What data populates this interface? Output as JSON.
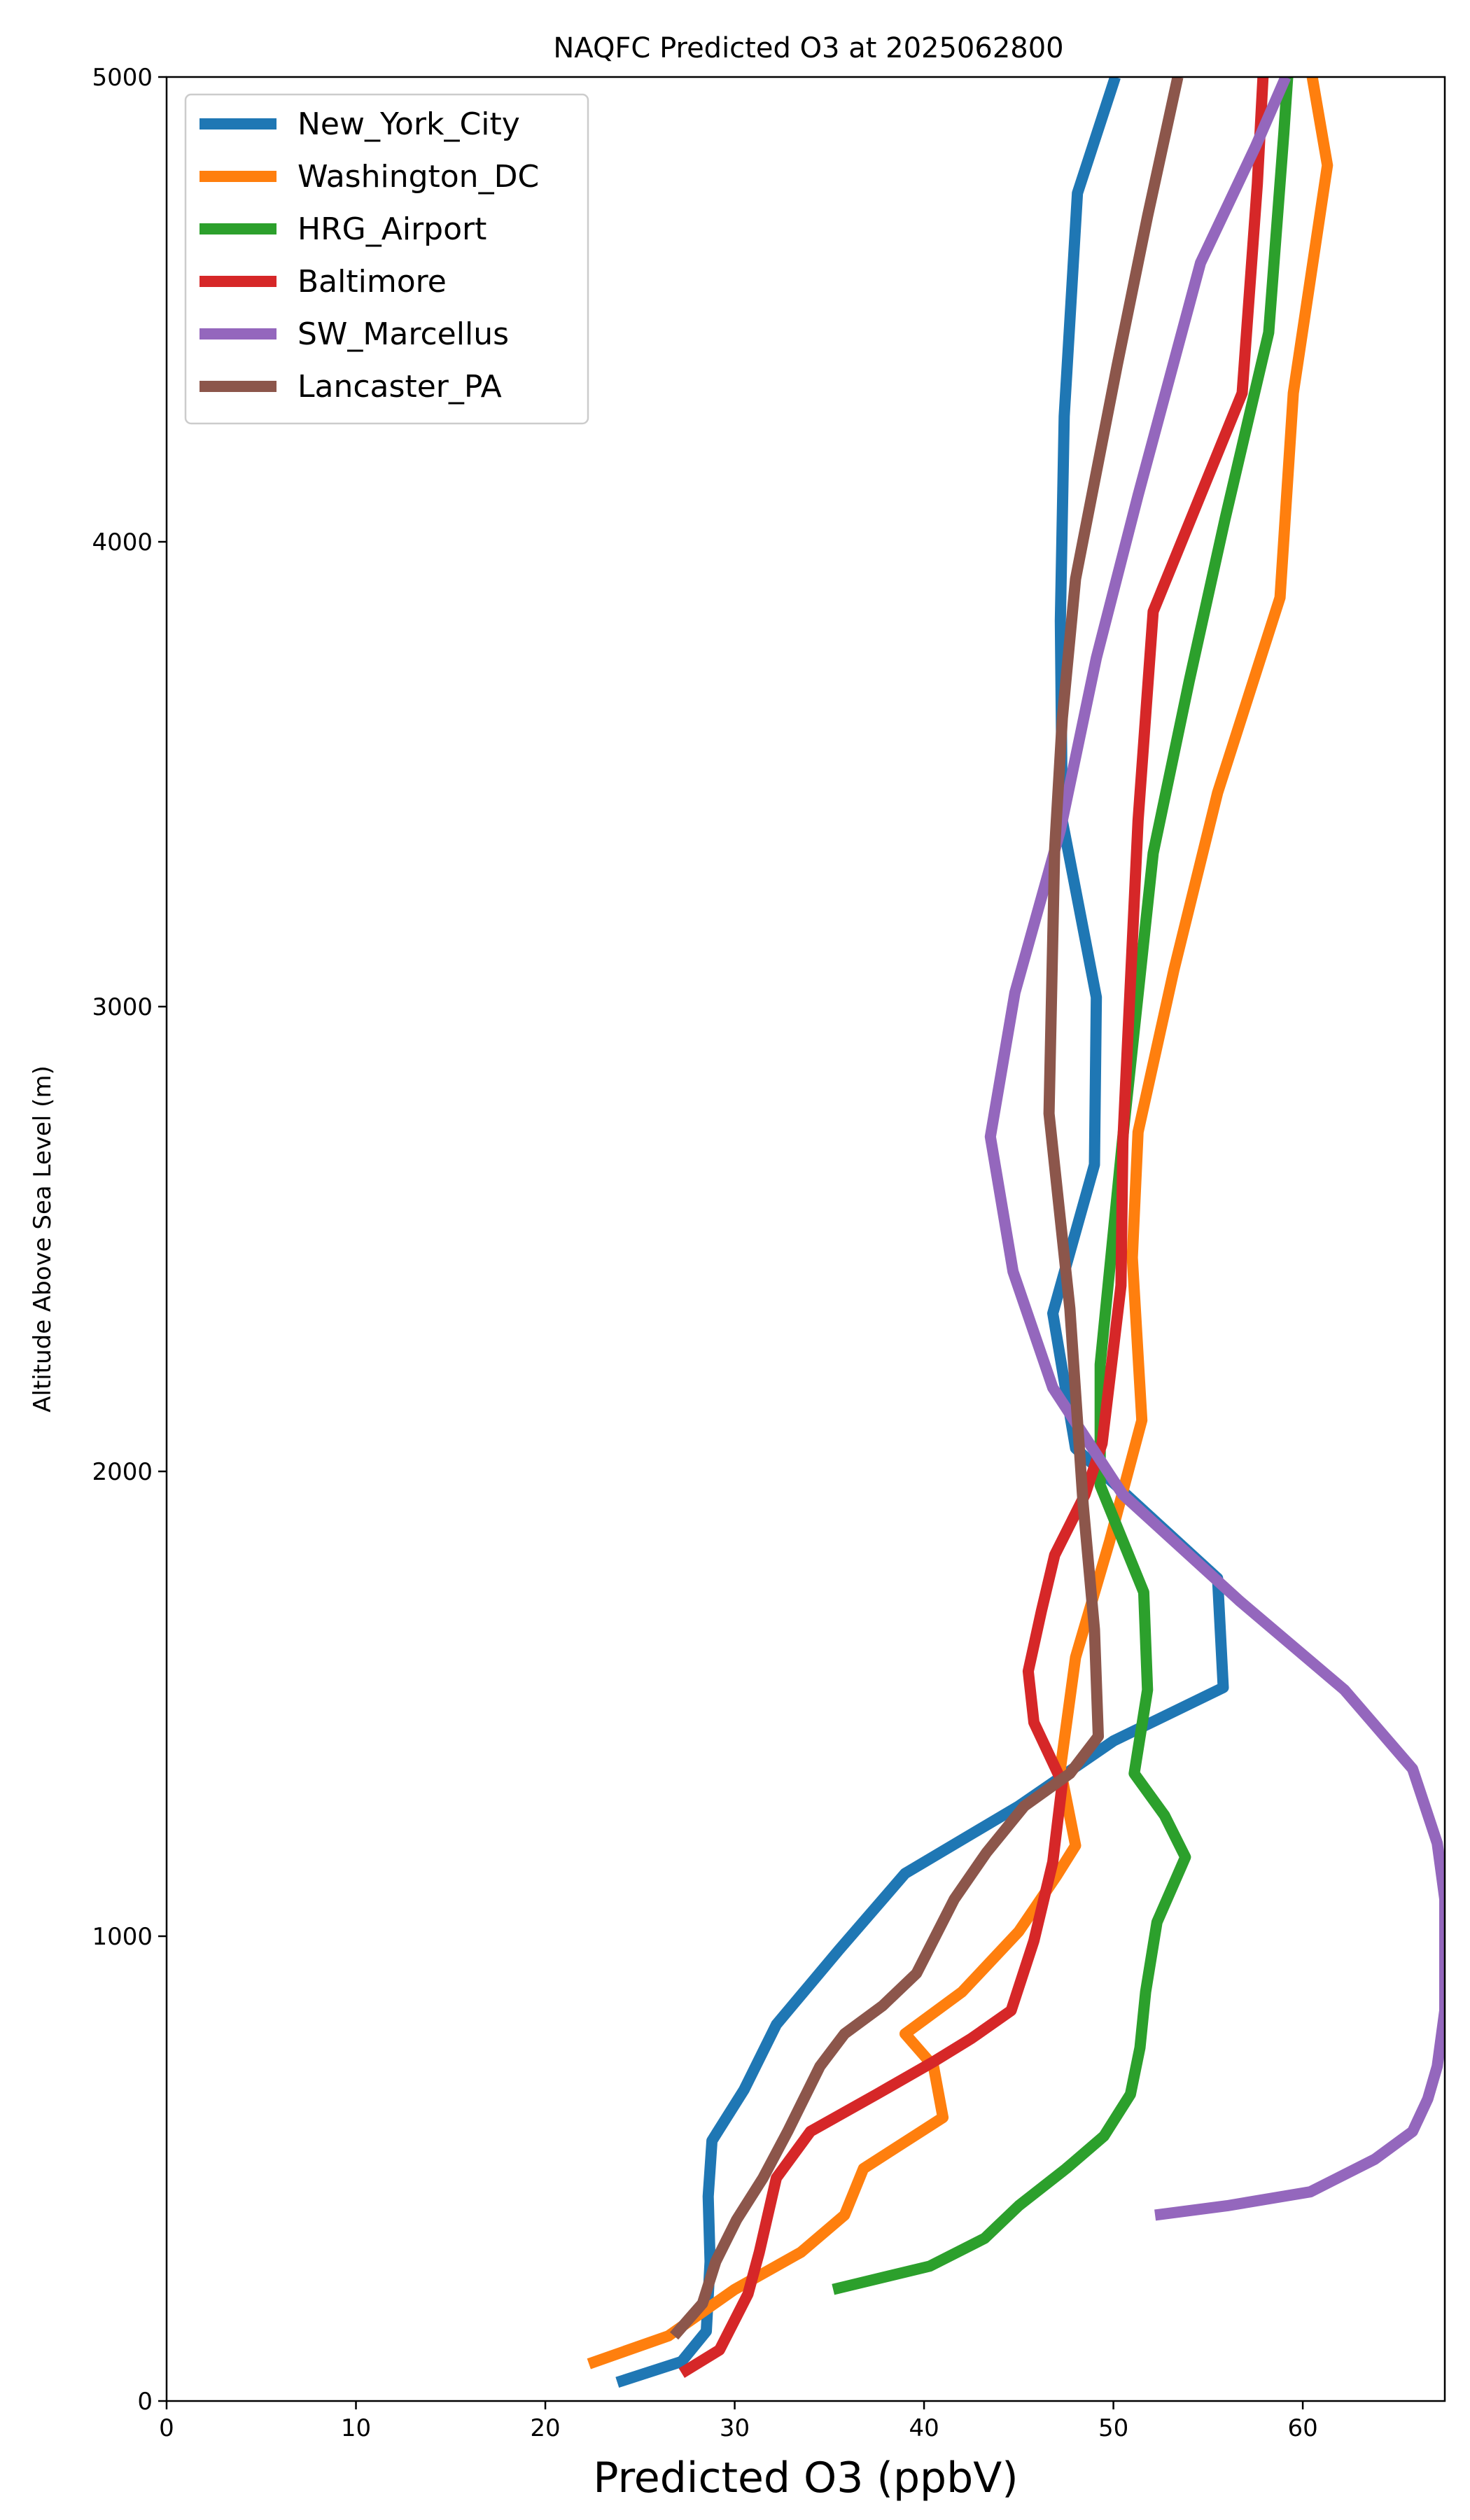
{
  "chart_data": {
    "type": "line",
    "title": "NAQFC Predicted O3 at 2025062800",
    "xlabel": "Predicted O3 (ppbV)",
    "ylabel": "Altitude Above Sea Level (m)",
    "xlim": [
      0,
      67.5
    ],
    "ylim": [
      0,
      5000
    ],
    "xticks": [
      0,
      10,
      20,
      30,
      40,
      50,
      60
    ],
    "yticks": [
      0,
      1000,
      2000,
      3000,
      4000,
      5000
    ],
    "grid": false,
    "legend_position": "upper left",
    "series": [
      {
        "name": "New_York_City",
        "color": "#1f77b4",
        "points": [
          [
            23.8,
            40
          ],
          [
            27.2,
            85
          ],
          [
            28.5,
            150
          ],
          [
            28.7,
            300
          ],
          [
            28.6,
            440
          ],
          [
            28.8,
            560
          ],
          [
            30.5,
            670
          ],
          [
            32.2,
            810
          ],
          [
            35.5,
            970
          ],
          [
            39,
            1135
          ],
          [
            45,
            1280
          ],
          [
            50,
            1420
          ],
          [
            55.8,
            1535
          ],
          [
            55.5,
            1770
          ],
          [
            48,
            2050
          ],
          [
            46.8,
            2340
          ],
          [
            49,
            2660
          ],
          [
            49.1,
            3020
          ],
          [
            47.3,
            3400
          ],
          [
            47.2,
            3830
          ],
          [
            47.4,
            4270
          ],
          [
            48.1,
            4750
          ],
          [
            50.1,
            5000
          ]
        ]
      },
      {
        "name": "Washington_DC",
        "color": "#ff7f0e",
        "points": [
          [
            22.3,
            80
          ],
          [
            26.5,
            140
          ],
          [
            30,
            240
          ],
          [
            33.5,
            320
          ],
          [
            35.8,
            400
          ],
          [
            36.8,
            500
          ],
          [
            41,
            610
          ],
          [
            40.5,
            720
          ],
          [
            39,
            790
          ],
          [
            42,
            880
          ],
          [
            45,
            1010
          ],
          [
            47,
            1130
          ],
          [
            48,
            1195
          ],
          [
            47.2,
            1360
          ],
          [
            48,
            1600
          ],
          [
            49.8,
            1850
          ],
          [
            51.5,
            2110
          ],
          [
            51,
            2460
          ],
          [
            51.3,
            2730
          ],
          [
            53.2,
            3080
          ],
          [
            55.5,
            3460
          ],
          [
            58.8,
            3880
          ],
          [
            59.5,
            4320
          ],
          [
            61.3,
            4810
          ],
          [
            60.5,
            5000
          ]
        ]
      },
      {
        "name": "HRG_Airport",
        "color": "#2ca02c",
        "points": [
          [
            35.2,
            240
          ],
          [
            40.3,
            290
          ],
          [
            43.2,
            350
          ],
          [
            45,
            420
          ],
          [
            47.5,
            500
          ],
          [
            49.5,
            570
          ],
          [
            50.9,
            660
          ],
          [
            51.4,
            760
          ],
          [
            51.7,
            880
          ],
          [
            52.3,
            1030
          ],
          [
            53.8,
            1170
          ],
          [
            52.7,
            1260
          ],
          [
            51.1,
            1350
          ],
          [
            51.8,
            1530
          ],
          [
            51.6,
            1740
          ],
          [
            49.3,
            1970
          ],
          [
            49.3,
            2230
          ],
          [
            50.5,
            2720
          ],
          [
            52.1,
            3330
          ],
          [
            54,
            3700
          ],
          [
            55.9,
            4050
          ],
          [
            58.2,
            4450
          ],
          [
            59,
            4880
          ],
          [
            59.2,
            5000
          ]
        ]
      },
      {
        "name": "Baltimore",
        "color": "#d62728",
        "points": [
          [
            27.2,
            60
          ],
          [
            29.2,
            110
          ],
          [
            30.7,
            230
          ],
          [
            31.3,
            320
          ],
          [
            32.2,
            480
          ],
          [
            34,
            580
          ],
          [
            37.5,
            660
          ],
          [
            40.5,
            730
          ],
          [
            42.5,
            780
          ],
          [
            44.6,
            840
          ],
          [
            45.8,
            990
          ],
          [
            46.8,
            1160
          ],
          [
            47.3,
            1330
          ],
          [
            45.8,
            1460
          ],
          [
            45.5,
            1570
          ],
          [
            46.2,
            1700
          ],
          [
            46.9,
            1820
          ],
          [
            48.5,
            1950
          ],
          [
            49.4,
            2060
          ],
          [
            50.4,
            2400
          ],
          [
            50.5,
            2710
          ],
          [
            51.3,
            3400
          ],
          [
            52.1,
            3850
          ],
          [
            56.8,
            4320
          ],
          [
            57.6,
            4770
          ],
          [
            57.9,
            5000
          ]
        ]
      },
      {
        "name": "SW_Marcellus",
        "color": "#9467bd",
        "points": [
          [
            52.2,
            400
          ],
          [
            56,
            420
          ],
          [
            60.4,
            450
          ],
          [
            63.8,
            520
          ],
          [
            65.8,
            580
          ],
          [
            66.6,
            650
          ],
          [
            67.1,
            720
          ],
          [
            67.5,
            840
          ],
          [
            67.5,
            1080
          ],
          [
            67.1,
            1200
          ],
          [
            65.8,
            1360
          ],
          [
            62.2,
            1530
          ],
          [
            56.7,
            1720
          ],
          [
            50.5,
            1950
          ],
          [
            46.8,
            2180
          ],
          [
            44.7,
            2430
          ],
          [
            43.5,
            2720
          ],
          [
            44.8,
            3030
          ],
          [
            47.2,
            3380
          ],
          [
            49.1,
            3750
          ],
          [
            51.3,
            4100
          ],
          [
            54.6,
            4600
          ],
          [
            57.5,
            4850
          ],
          [
            59.1,
            5000
          ]
        ]
      },
      {
        "name": "Lancaster_PA",
        "color": "#8c564b",
        "points": [
          [
            26.8,
            140
          ],
          [
            28.3,
            210
          ],
          [
            29,
            300
          ],
          [
            30.1,
            390
          ],
          [
            31.5,
            480
          ],
          [
            32.8,
            580
          ],
          [
            34.5,
            720
          ],
          [
            35.8,
            790
          ],
          [
            37.8,
            850
          ],
          [
            39.6,
            920
          ],
          [
            41.6,
            1080
          ],
          [
            43.3,
            1180
          ],
          [
            45.3,
            1280
          ],
          [
            47.7,
            1350
          ],
          [
            49.2,
            1430
          ],
          [
            49,
            1660
          ],
          [
            48.4,
            1930
          ],
          [
            47.7,
            2350
          ],
          [
            46.6,
            2770
          ],
          [
            46.9,
            3340
          ],
          [
            47.3,
            3620
          ],
          [
            48,
            3920
          ],
          [
            50.2,
            4380
          ],
          [
            51.8,
            4700
          ],
          [
            53.4,
            5000
          ]
        ]
      }
    ]
  }
}
